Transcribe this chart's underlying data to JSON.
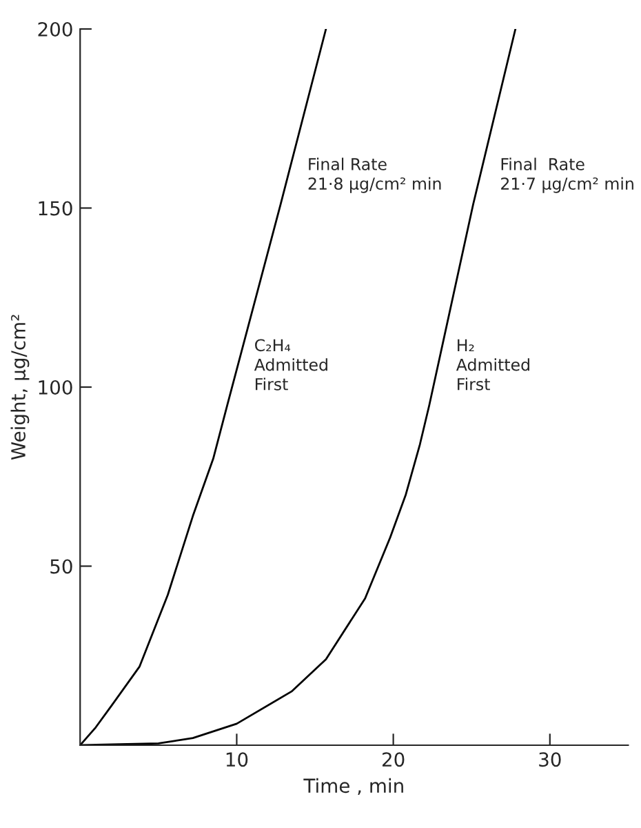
{
  "chart_data": {
    "type": "line",
    "xlabel": "Time , min",
    "ylabel": "Weight, µg/cm²",
    "xlim": [
      0,
      35
    ],
    "ylim": [
      0,
      200
    ],
    "xticks": [
      10,
      20,
      30
    ],
    "yticks": [
      50,
      100,
      150,
      200
    ],
    "grid": false,
    "legend": false,
    "marker": "none",
    "line_style": "solid",
    "series": [
      {
        "color": "#000000",
        "x": [
          0,
          1,
          2,
          3.8,
          5.6,
          7.2,
          8.5,
          9.4,
          12.8,
          15.7
        ],
        "values": [
          0,
          5,
          11,
          22,
          42,
          64,
          80,
          95,
          151,
          200
        ]
      },
      {
        "color": "#000000",
        "x": [
          0,
          5,
          7.2,
          10,
          13.5,
          15.7,
          18.2,
          19.8,
          20.8,
          21.7,
          22.3,
          25.1,
          27.8
        ],
        "values": [
          0,
          0.5,
          2,
          6,
          15,
          24,
          41,
          58,
          70,
          84,
          95,
          151,
          200
        ]
      }
    ],
    "annotations": [
      {
        "text": "Final Rate\n21·8 µg/cm² min",
        "x": 12.8,
        "y": 151
      },
      {
        "text": "Final  Rate\n21·7 µg/cm² min",
        "x": 25.1,
        "y": 151
      },
      {
        "text": "C₂H₄\nAdmitted\nFirst",
        "x": 9.4,
        "y": 95
      },
      {
        "text": "H₂\nAdmitted\nFirst",
        "x": 22.3,
        "y": 95
      }
    ]
  }
}
